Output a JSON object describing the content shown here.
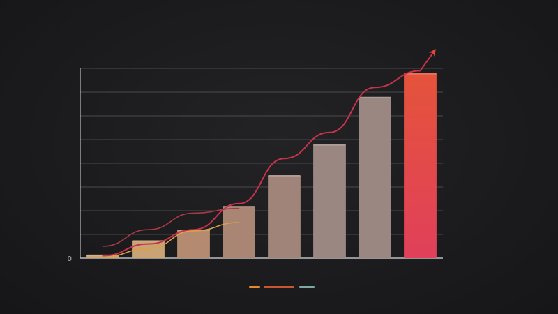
{
  "chart_data": {
    "type": "bar",
    "title": "",
    "xlabel": "",
    "ylabel": "",
    "ylim": [
      0,
      8
    ],
    "yticks": [
      0,
      1,
      2,
      3,
      4,
      5,
      6,
      7,
      8
    ],
    "ytick_labels": [
      "0",
      "",
      "",
      "",
      "",
      "",
      "",
      "",
      ""
    ],
    "categories": [
      "",
      "",
      "",
      "",
      "",
      "",
      "",
      ""
    ],
    "grid": true,
    "legend_position": "bottom",
    "series": [
      {
        "values": [
          0.15,
          0.75,
          1.2,
          2.2,
          3.5,
          4.8,
          6.8,
          7.8
        ],
        "colors": [
          "#c9a374",
          "#c9a374",
          "#b48a70",
          "#a98574",
          "#a08479",
          "#9a8781",
          "#9a8781",
          "#e24b3a"
        ]
      }
    ],
    "line_series": [
      {
        "values": [
          0.1,
          0.6,
          1.2,
          2.3,
          4.2,
          5.3,
          7.2,
          7.9
        ],
        "color": "#c8324c",
        "arrow": true
      },
      {
        "values": [
          0.5,
          1.2,
          1.9,
          2.1
        ],
        "color": "#a83a44"
      },
      {
        "values": [
          0.05,
          0.4,
          1.15,
          1.5
        ],
        "color": "#d9a14a"
      }
    ],
    "legend": [
      {
        "label": "",
        "color": "#e58a2c"
      },
      {
        "label": "",
        "color": "#c8562e"
      },
      {
        "label": "",
        "color": "#7fa8a2"
      }
    ],
    "colors": {
      "background": "#1c1c1e",
      "grid": "#4a4a4c",
      "axis": "#bdbdbd"
    }
  }
}
